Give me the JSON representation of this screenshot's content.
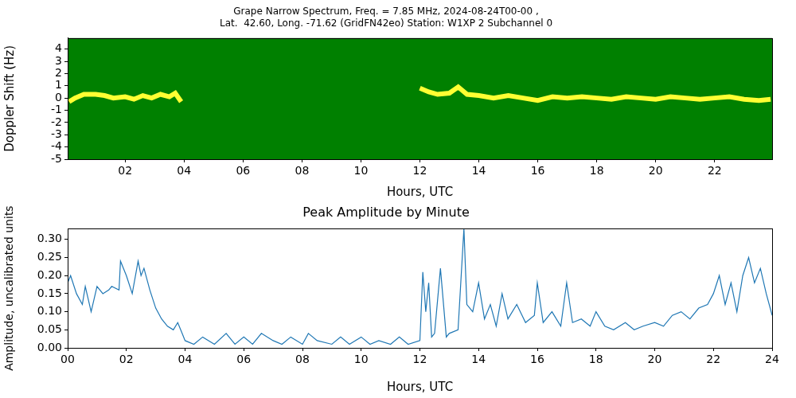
{
  "chart_data": [
    {
      "type": "line",
      "title": "Grape Narrow Spectrum, Freq. = 7.85 MHz, 2024-08-24T00-00 ,",
      "subtitle": "Lat.  42.60, Long. -71.62 (GridFN42eo) Station: W1XP 2 Subchannel 0",
      "x_label": "Hours, UTC",
      "y_label": "Doppler Shift (Hz)",
      "xlim": [
        0.05,
        23.95
      ],
      "xticks": [
        {
          "value": 2,
          "label": "02"
        },
        {
          "value": 4,
          "label": "04"
        },
        {
          "value": 6,
          "label": "06"
        },
        {
          "value": 8,
          "label": "08"
        },
        10,
        12,
        14,
        16,
        18,
        20,
        22
      ],
      "ylim": [
        -5,
        4.9
      ],
      "yticks": [
        -5,
        -4,
        -3,
        -2,
        -1,
        0,
        1,
        2,
        3,
        4
      ],
      "grid": false,
      "series": [
        {
          "name": "Doppler shift",
          "color": "#ff0000",
          "x": [
            0.1,
            0.3,
            0.6,
            1.0,
            1.3,
            1.6,
            2.0,
            2.3,
            2.6,
            2.9,
            3.2,
            3.5,
            3.7,
            3.9,
            4.0,
            12.0,
            12.3,
            12.6,
            13.0,
            13.3,
            13.6,
            14.0,
            14.5,
            15.0,
            15.5,
            16.0,
            16.5,
            17.0,
            17.5,
            18.0,
            18.5,
            19.0,
            19.5,
            20.0,
            20.5,
            21.0,
            21.5,
            22.0,
            22.5,
            23.0,
            23.5,
            23.9
          ],
          "values": [
            -0.3,
            0.0,
            0.3,
            0.3,
            0.2,
            0.0,
            0.1,
            -0.1,
            0.2,
            0.0,
            0.3,
            0.1,
            0.4,
            -0.3,
            null,
            0.8,
            0.5,
            0.3,
            0.4,
            0.9,
            0.3,
            0.2,
            0.0,
            0.2,
            0.0,
            -0.2,
            0.1,
            0.0,
            0.1,
            0.0,
            -0.1,
            0.1,
            0.0,
            -0.1,
            0.1,
            0.0,
            -0.1,
            0.0,
            0.1,
            -0.1,
            -0.2,
            -0.1
          ]
        }
      ]
    },
    {
      "type": "line",
      "title": "Peak Amplitude by Minute",
      "x_label": "Hours, UTC",
      "y_label": "Amplitude, uncalibrated units",
      "xlim": [
        0,
        24
      ],
      "xticks": [
        {
          "value": 0,
          "label": "00"
        },
        {
          "value": 2,
          "label": "02"
        },
        {
          "value": 4,
          "label": "04"
        },
        {
          "value": 6,
          "label": "06"
        },
        {
          "value": 8,
          "label": "08"
        },
        10,
        12,
        14,
        16,
        18,
        20,
        22,
        24
      ],
      "ylim": [
        0,
        0.33
      ],
      "yticks": [
        {
          "value": 0,
          "label": "0.00"
        },
        {
          "value": 0.05,
          "label": "0.05"
        },
        {
          "value": 0.1,
          "label": "0.10"
        },
        {
          "value": 0.15,
          "label": "0.15"
        },
        {
          "value": 0.2,
          "label": "0.20"
        },
        {
          "value": 0.25,
          "label": "0.25"
        },
        {
          "value": 0.3,
          "label": "0.30"
        }
      ],
      "grid": false,
      "series": [
        {
          "name": "Peak amplitude",
          "color": "#1f77b4",
          "x": [
            0,
            0.1,
            0.3,
            0.5,
            0.6,
            0.8,
            1.0,
            1.2,
            1.4,
            1.5,
            1.75,
            1.8,
            2.0,
            2.2,
            2.4,
            2.5,
            2.6,
            2.8,
            3.0,
            3.2,
            3.4,
            3.6,
            3.75,
            3.9,
            4.0,
            4.3,
            4.6,
            5.0,
            5.4,
            5.7,
            6.0,
            6.3,
            6.6,
            7.0,
            7.3,
            7.6,
            8.0,
            8.2,
            8.5,
            9.0,
            9.3,
            9.6,
            10.0,
            10.3,
            10.6,
            11.0,
            11.3,
            11.6,
            12.0,
            12.1,
            12.2,
            12.3,
            12.4,
            12.5,
            12.7,
            12.9,
            13.0,
            13.3,
            13.5,
            13.6,
            13.8,
            14.0,
            14.2,
            14.4,
            14.6,
            14.8,
            15.0,
            15.3,
            15.6,
            15.9,
            16.0,
            16.2,
            16.5,
            16.8,
            17.0,
            17.2,
            17.5,
            17.8,
            18.0,
            18.3,
            18.6,
            19.0,
            19.3,
            19.6,
            20.0,
            20.3,
            20.6,
            20.9,
            21.2,
            21.5,
            21.8,
            22.0,
            22.2,
            22.4,
            22.6,
            22.8,
            23.0,
            23.2,
            23.4,
            23.6,
            23.8,
            24.0
          ],
          "values": [
            0.18,
            0.2,
            0.15,
            0.12,
            0.17,
            0.1,
            0.17,
            0.15,
            0.16,
            0.17,
            0.16,
            0.24,
            0.2,
            0.15,
            0.24,
            0.2,
            0.22,
            0.16,
            0.11,
            0.08,
            0.06,
            0.05,
            0.07,
            0.04,
            0.02,
            0.01,
            0.03,
            0.01,
            0.04,
            0.01,
            0.03,
            0.01,
            0.04,
            0.02,
            0.01,
            0.03,
            0.01,
            0.04,
            0.02,
            0.01,
            0.03,
            0.01,
            0.03,
            0.01,
            0.02,
            0.01,
            0.03,
            0.01,
            0.02,
            0.21,
            0.1,
            0.18,
            0.03,
            0.04,
            0.22,
            0.03,
            0.04,
            0.05,
            0.33,
            0.12,
            0.1,
            0.18,
            0.08,
            0.12,
            0.06,
            0.15,
            0.08,
            0.12,
            0.07,
            0.09,
            0.18,
            0.07,
            0.1,
            0.06,
            0.18,
            0.07,
            0.08,
            0.06,
            0.1,
            0.06,
            0.05,
            0.07,
            0.05,
            0.06,
            0.07,
            0.06,
            0.09,
            0.1,
            0.08,
            0.11,
            0.12,
            0.15,
            0.2,
            0.12,
            0.18,
            0.1,
            0.2,
            0.25,
            0.18,
            0.22,
            0.15,
            0.09
          ]
        }
      ]
    }
  ]
}
